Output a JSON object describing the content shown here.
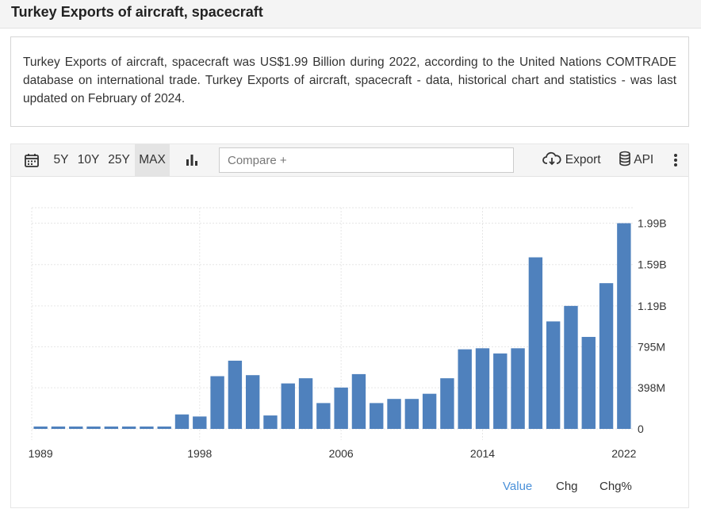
{
  "page": {
    "title": "Turkey Exports of aircraft, spacecraft",
    "description": "Turkey Exports of aircraft, spacecraft was US$1.99 Billion during 2022, according to the United Nations COMTRADE database on international trade. Turkey Exports of aircraft, spacecraft - data, historical chart and statistics - was last updated on February of 2024."
  },
  "toolbar": {
    "ranges": [
      "5Y",
      "10Y",
      "25Y",
      "MAX"
    ],
    "active_range": "MAX",
    "compare_placeholder": "Compare +",
    "export_label": "Export",
    "api_label": "API"
  },
  "legend": {
    "value_label": "Value",
    "chg_label": "Chg",
    "chgpct_label": "Chg%"
  },
  "colors": {
    "bar": "#4f81bd",
    "active_legend": "#4a90d9"
  },
  "chart_data": {
    "type": "bar",
    "categories": [
      "1989",
      "1990",
      "1991",
      "1992",
      "1993",
      "1994",
      "1995",
      "1996",
      "1997",
      "1998",
      "1999",
      "2000",
      "2001",
      "2002",
      "2003",
      "2004",
      "2005",
      "2006",
      "2007",
      "2008",
      "2009",
      "2010",
      "2011",
      "2012",
      "2013",
      "2014",
      "2015",
      "2016",
      "2017",
      "2018",
      "2019",
      "2020",
      "2021",
      "2022"
    ],
    "values": [
      0.02,
      0.02,
      0.02,
      0.02,
      0.02,
      0.02,
      0.02,
      0.02,
      0.14,
      0.12,
      0.51,
      0.66,
      0.52,
      0.13,
      0.44,
      0.49,
      0.25,
      0.4,
      0.53,
      0.25,
      0.29,
      0.29,
      0.34,
      0.49,
      0.77,
      0.78,
      0.73,
      0.78,
      1.66,
      1.04,
      1.19,
      0.89,
      1.41,
      1.99
    ],
    "unit": "Billion US$",
    "y_ticks": [
      0,
      0.398,
      0.795,
      1.19,
      1.59,
      1.99
    ],
    "y_tick_labels": [
      "0",
      "398M",
      "795M",
      "1.19B",
      "1.59B",
      "1.99B"
    ],
    "x_ticks": [
      "1989",
      "1998",
      "2006",
      "2014",
      "2022"
    ],
    "ylim": [
      0,
      2.14
    ],
    "grid": true
  }
}
